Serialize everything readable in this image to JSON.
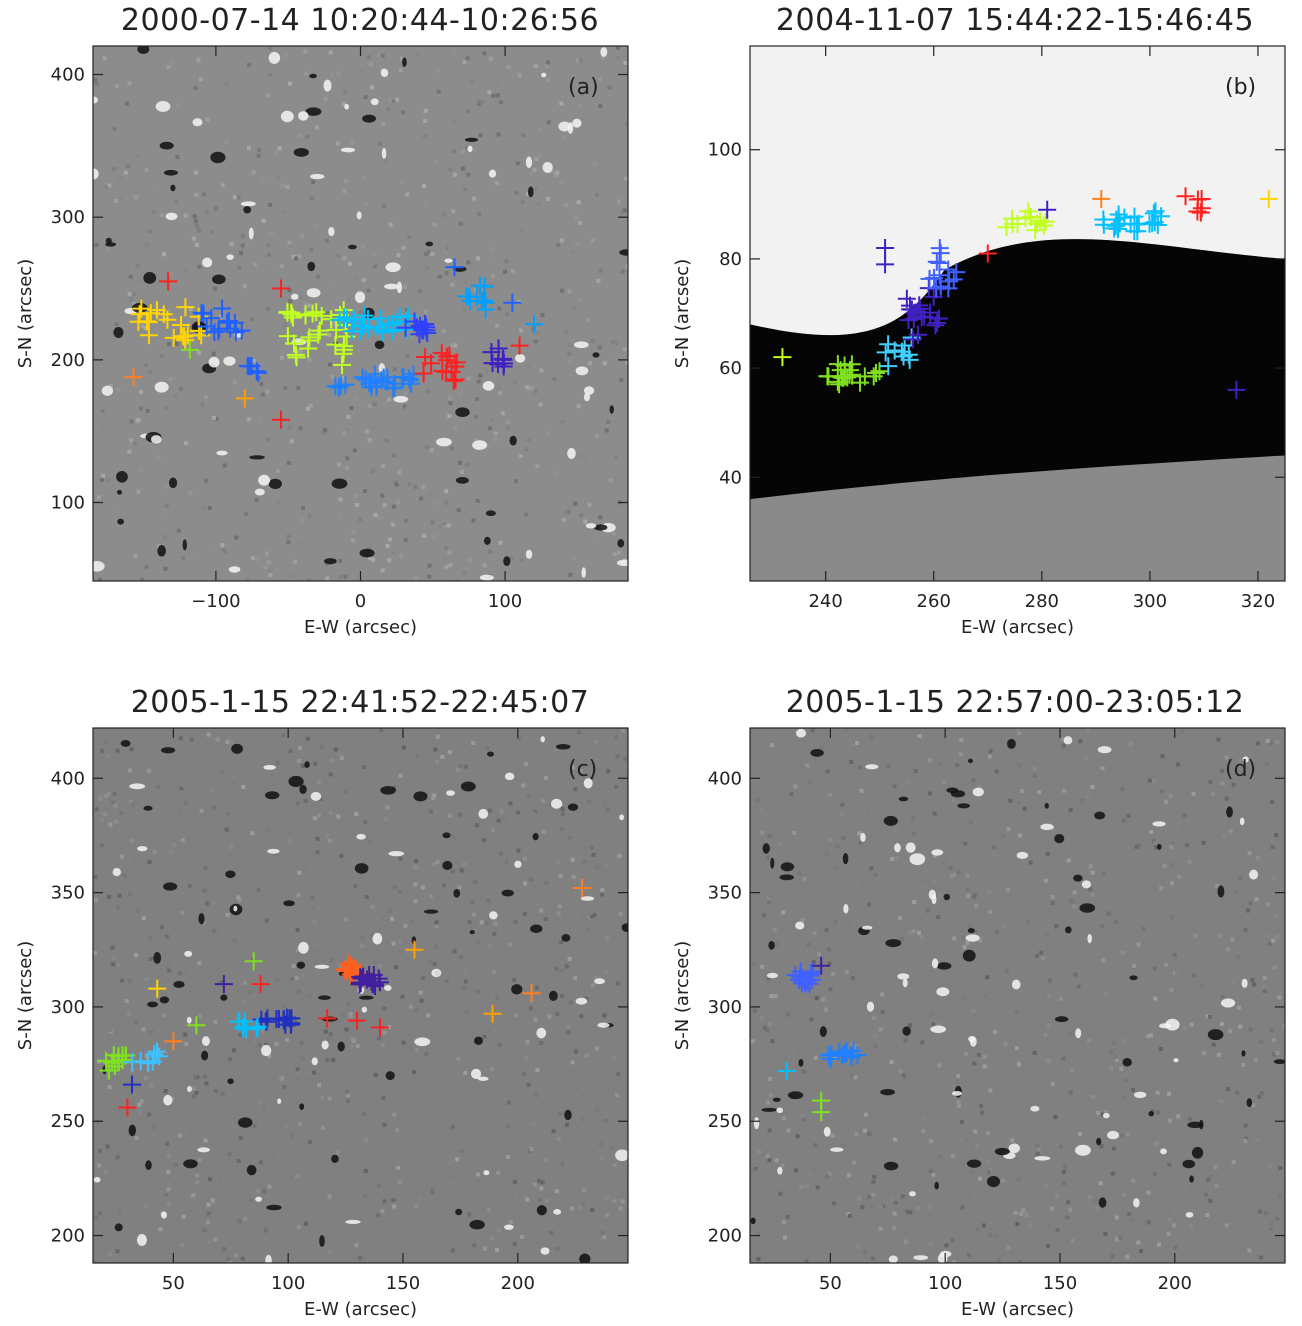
{
  "chart_data": [
    {
      "panel": "a",
      "type": "scatter",
      "title": "2000-07-14  10:20:44-10:26:56",
      "label": "(a)",
      "xlabel": "E-W (arcsec)",
      "ylabel": "S-N (arcsec)",
      "xlim": [
        -185,
        185
      ],
      "ylim": [
        45,
        420
      ],
      "xticks": [
        -100,
        0,
        100
      ],
      "yticks": [
        100,
        200,
        300,
        400
      ],
      "background": "magnetogram",
      "bg_level": 0.55,
      "clusters": [
        {
          "cx": -130,
          "cy": 225,
          "sx": 25,
          "sy": 12,
          "n": 20,
          "color": "#ffd400"
        },
        {
          "cx": -95,
          "cy": 228,
          "sx": 15,
          "sy": 10,
          "n": 14,
          "color": "#2060ff"
        },
        {
          "cx": -30,
          "cy": 215,
          "sx": 22,
          "sy": 20,
          "n": 30,
          "color": "#c0ff20"
        },
        {
          "cx": 10,
          "cy": 225,
          "sx": 25,
          "sy": 6,
          "n": 26,
          "color": "#00c0ff"
        },
        {
          "cx": 40,
          "cy": 222,
          "sx": 12,
          "sy": 5,
          "n": 12,
          "color": "#3040ff"
        },
        {
          "cx": 10,
          "cy": 185,
          "sx": 30,
          "sy": 5,
          "n": 26,
          "color": "#2080ff"
        },
        {
          "cx": 55,
          "cy": 195,
          "sx": 12,
          "sy": 10,
          "n": 14,
          "color": "#ff2020"
        },
        {
          "cx": 80,
          "cy": 245,
          "sx": 10,
          "sy": 12,
          "n": 10,
          "color": "#00a0ff"
        },
        {
          "cx": 95,
          "cy": 200,
          "sx": 8,
          "sy": 8,
          "n": 8,
          "color": "#4020c0"
        },
        {
          "cx": -75,
          "cy": 195,
          "sx": 5,
          "sy": 5,
          "n": 5,
          "color": "#2060ff"
        }
      ],
      "singles": [
        {
          "x": -133,
          "y": 255,
          "color": "#ff2020"
        },
        {
          "x": -157,
          "y": 188,
          "color": "#ff8020"
        },
        {
          "x": -118,
          "y": 207,
          "color": "#80e020"
        },
        {
          "x": -80,
          "y": 173,
          "color": "#ffa000"
        },
        {
          "x": -55,
          "y": 158,
          "color": "#ff2020"
        },
        {
          "x": -55,
          "y": 250,
          "color": "#ff2020"
        },
        {
          "x": 65,
          "y": 265,
          "color": "#2060ff"
        },
        {
          "x": 120,
          "y": 225,
          "color": "#00a0ff"
        },
        {
          "x": 105,
          "y": 240,
          "color": "#2060ff"
        },
        {
          "x": 110,
          "y": 210,
          "color": "#ff2020"
        }
      ]
    },
    {
      "panel": "b",
      "type": "scatter",
      "title": "2004-11-07  15:44:22-15:46:45",
      "label": "(b)",
      "xlabel": "E-W (arcsec)",
      "ylabel": "S-N (arcsec)",
      "xlim": [
        226,
        325
      ],
      "ylim": [
        21,
        119
      ],
      "xticks": [
        240,
        260,
        280,
        300,
        320
      ],
      "yticks": [
        40,
        60,
        80,
        100
      ],
      "background": "white-black split",
      "clusters": [
        {
          "cx": 245,
          "cy": 59,
          "sx": 5,
          "sy": 2,
          "n": 20,
          "color": "#80e020"
        },
        {
          "cx": 253,
          "cy": 63,
          "sx": 3,
          "sy": 3,
          "n": 10,
          "color": "#40d0ff"
        },
        {
          "cx": 258,
          "cy": 70,
          "sx": 3,
          "sy": 5,
          "n": 22,
          "color": "#4020c0"
        },
        {
          "cx": 262,
          "cy": 78,
          "sx": 3,
          "sy": 4,
          "n": 14,
          "color": "#4060ff"
        },
        {
          "cx": 277,
          "cy": 87,
          "sx": 4,
          "sy": 2,
          "n": 12,
          "color": "#c0ff20"
        },
        {
          "cx": 297,
          "cy": 87,
          "sx": 6,
          "sy": 2,
          "n": 22,
          "color": "#00c0ff"
        },
        {
          "cx": 308,
          "cy": 90,
          "sx": 2,
          "sy": 2,
          "n": 6,
          "color": "#ff2020"
        }
      ],
      "singles": [
        {
          "x": 232,
          "y": 62,
          "color": "#c0ff20"
        },
        {
          "x": 251,
          "y": 82,
          "color": "#4020c0"
        },
        {
          "x": 251,
          "y": 79,
          "color": "#4020c0"
        },
        {
          "x": 270,
          "y": 81,
          "color": "#ff2020"
        },
        {
          "x": 281,
          "y": 89,
          "color": "#4020c0"
        },
        {
          "x": 291,
          "y": 91,
          "color": "#ff8020"
        },
        {
          "x": 316,
          "y": 56,
          "color": "#4020c0"
        },
        {
          "x": 322,
          "y": 91,
          "color": "#ffd400"
        }
      ]
    },
    {
      "panel": "c",
      "type": "scatter",
      "title": "2005-1-15  22:41:52-22:45:07",
      "label": "(c)",
      "xlabel": "E-W (arcsec)",
      "ylabel": "S-N (arcsec)",
      "xlim": [
        15,
        248
      ],
      "ylim": [
        188,
        422
      ],
      "xticks": [
        50,
        100,
        150,
        200
      ],
      "yticks": [
        200,
        250,
        300,
        350,
        400
      ],
      "background": "magnetogram",
      "bg_level": 0.5,
      "clusters": [
        {
          "cx": 25,
          "cy": 276,
          "sx": 5,
          "sy": 4,
          "n": 12,
          "color": "#80e020"
        },
        {
          "cx": 38,
          "cy": 278,
          "sx": 6,
          "sy": 3,
          "n": 8,
          "color": "#40c0ff"
        },
        {
          "cx": 95,
          "cy": 294,
          "sx": 8,
          "sy": 2,
          "n": 14,
          "color": "#2030c0"
        },
        {
          "cx": 82,
          "cy": 292,
          "sx": 5,
          "sy": 2,
          "n": 8,
          "color": "#00c0ff"
        },
        {
          "cx": 128,
          "cy": 316,
          "sx": 4,
          "sy": 3,
          "n": 14,
          "color": "#ff6020"
        },
        {
          "cx": 135,
          "cy": 312,
          "sx": 5,
          "sy": 3,
          "n": 16,
          "color": "#4020a0"
        }
      ],
      "singles": [
        {
          "x": 43,
          "y": 308,
          "color": "#ffd400"
        },
        {
          "x": 32,
          "y": 266,
          "color": "#2030c0"
        },
        {
          "x": 30,
          "y": 256,
          "color": "#ff2020"
        },
        {
          "x": 50,
          "y": 285,
          "color": "#ff8020"
        },
        {
          "x": 60,
          "y": 292,
          "color": "#80e020"
        },
        {
          "x": 72,
          "y": 310,
          "color": "#4020a0"
        },
        {
          "x": 85,
          "y": 320,
          "color": "#80e020"
        },
        {
          "x": 88,
          "y": 310,
          "color": "#ff2020"
        },
        {
          "x": 117,
          "y": 295,
          "color": "#ff2020"
        },
        {
          "x": 130,
          "y": 294,
          "color": "#ff2020"
        },
        {
          "x": 140,
          "y": 291,
          "color": "#ff2020"
        },
        {
          "x": 155,
          "y": 325,
          "color": "#ffa000"
        },
        {
          "x": 189,
          "y": 297,
          "color": "#ffa000"
        },
        {
          "x": 206,
          "y": 306,
          "color": "#ff8020"
        },
        {
          "x": 228,
          "y": 352,
          "color": "#ff8020"
        }
      ]
    },
    {
      "panel": "d",
      "type": "scatter",
      "title": "2005-1-15  22:57:00-23:05:12",
      "label": "(d)",
      "xlabel": "E-W (arcsec)",
      "ylabel": "S-N (arcsec)",
      "xlim": [
        15,
        248
      ],
      "ylim": [
        188,
        422
      ],
      "xticks": [
        50,
        100,
        150,
        200
      ],
      "yticks": [
        200,
        250,
        300,
        350,
        400
      ],
      "background": "magnetogram",
      "bg_level": 0.5,
      "clusters": [
        {
          "cx": 38,
          "cy": 313,
          "sx": 5,
          "sy": 3,
          "n": 16,
          "color": "#4060ff"
        },
        {
          "cx": 55,
          "cy": 279,
          "sx": 8,
          "sy": 2,
          "n": 14,
          "color": "#2080ff"
        }
      ],
      "singles": [
        {
          "x": 31,
          "y": 272,
          "color": "#00c0ff"
        },
        {
          "x": 46,
          "y": 259,
          "color": "#80e020"
        },
        {
          "x": 46,
          "y": 254,
          "color": "#80e020"
        },
        {
          "x": 46,
          "y": 318,
          "color": "#4020a0"
        }
      ]
    }
  ]
}
